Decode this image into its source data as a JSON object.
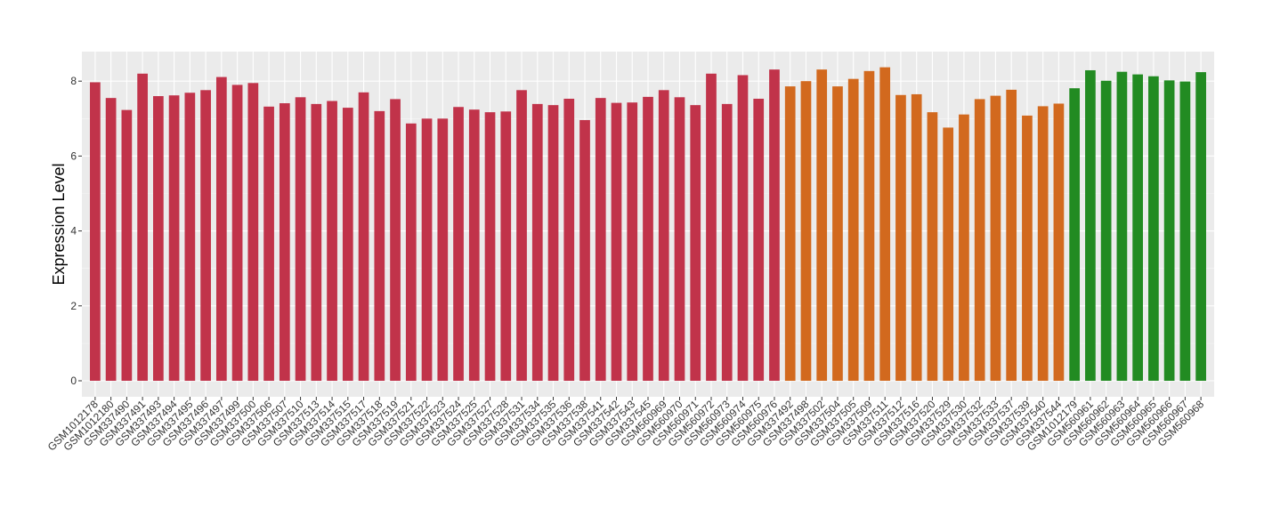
{
  "chart_data": {
    "type": "bar",
    "title": "",
    "xlabel": "",
    "ylabel": "Expression Level",
    "ylim": [
      0,
      8.6
    ],
    "yticks": [
      0,
      2,
      4,
      6,
      8
    ],
    "grid": true,
    "legend": "none",
    "categories": [
      "GSM1012178",
      "GSM1012180",
      "GSM337490",
      "GSM337491",
      "GSM337493",
      "GSM337494",
      "GSM337495",
      "GSM337496",
      "GSM337497",
      "GSM337499",
      "GSM337500",
      "GSM337506",
      "GSM337507",
      "GSM337510",
      "GSM337513",
      "GSM337514",
      "GSM337515",
      "GSM337517",
      "GSM337518",
      "GSM337519",
      "GSM337521",
      "GSM337522",
      "GSM337523",
      "GSM337524",
      "GSM337525",
      "GSM337527",
      "GSM337528",
      "GSM337531",
      "GSM337534",
      "GSM337535",
      "GSM337536",
      "GSM337538",
      "GSM337541",
      "GSM337542",
      "GSM337543",
      "GSM337545",
      "GSM560969",
      "GSM560970",
      "GSM560971",
      "GSM560972",
      "GSM560973",
      "GSM560974",
      "GSM560975",
      "GSM560976",
      "GSM337492",
      "GSM337498",
      "GSM337502",
      "GSM337504",
      "GSM337505",
      "GSM337509",
      "GSM337511",
      "GSM337512",
      "GSM337516",
      "GSM337520",
      "GSM337529",
      "GSM337530",
      "GSM337532",
      "GSM337533",
      "GSM337537",
      "GSM337539",
      "GSM337540",
      "GSM337544",
      "GSM1012179",
      "GSM560961",
      "GSM560962",
      "GSM560963",
      "GSM560964",
      "GSM560965",
      "GSM560966",
      "GSM560967",
      "GSM560968"
    ],
    "values": [
      7.97,
      7.55,
      7.23,
      8.2,
      7.6,
      7.62,
      7.69,
      7.76,
      8.11,
      7.9,
      7.95,
      7.32,
      7.41,
      7.57,
      7.39,
      7.47,
      7.29,
      7.7,
      7.2,
      7.52,
      6.87,
      7.0,
      7.0,
      7.31,
      7.24,
      7.17,
      7.19,
      7.76,
      7.39,
      7.36,
      7.53,
      6.96,
      7.55,
      7.42,
      7.43,
      7.58,
      7.76,
      7.57,
      7.36,
      8.2,
      7.39,
      8.16,
      7.53,
      8.31,
      7.86,
      8.0,
      8.31,
      7.86,
      8.06,
      8.27,
      8.37,
      7.63,
      7.65,
      7.17,
      6.76,
      7.11,
      7.52,
      7.61,
      7.77,
      7.08,
      7.33,
      7.4,
      7.81,
      8.29,
      8.01,
      8.25,
      8.18,
      8.13,
      8.02,
      7.99,
      8.24
    ],
    "colors": [
      "#c1334a",
      "#d2691e",
      "#228b22"
    ],
    "group_sizes": [
      44,
      18,
      9
    ]
  }
}
